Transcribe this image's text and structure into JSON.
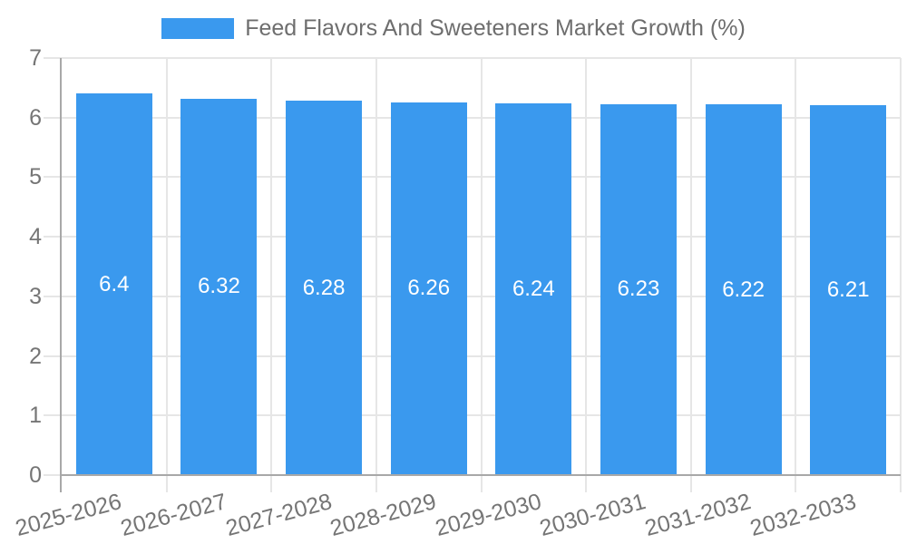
{
  "chart_data": {
    "type": "bar",
    "title": "Feed Flavors And Sweeteners Market Growth (%)",
    "categories": [
      "2025-2026",
      "2026-2027",
      "2027-2028",
      "2028-2029",
      "2029-2030",
      "2030-2031",
      "2031-2032",
      "2032-2033"
    ],
    "values": [
      6.4,
      6.32,
      6.28,
      6.26,
      6.24,
      6.23,
      6.22,
      6.21
    ],
    "xlabel": "",
    "ylabel": "",
    "ylim": [
      0,
      7
    ],
    "yticks": [
      0,
      1,
      2,
      3,
      4,
      5,
      6,
      7
    ],
    "grid": true,
    "legend_position": "top",
    "bar_value_labels_shown": true
  },
  "colors": {
    "bar": "#3A99EE",
    "bar_value_label": "#FFFFFF",
    "grid": "#E6E6E6",
    "axis": "#A8A8A8",
    "tick_label": "#757575",
    "legend_text": "#6E6E6E",
    "background": "#FFFFFF"
  }
}
